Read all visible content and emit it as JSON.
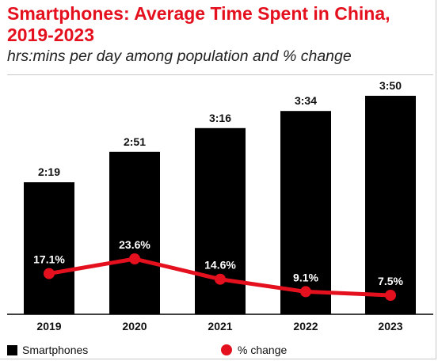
{
  "title": "Smartphones: Average Time Spent in China, 2019-2023",
  "subtitle": "hrs:mins per day among population and % change",
  "colors": {
    "bar": "#000000",
    "line": "#e4101e",
    "title": "#e4101e",
    "label_bg": "#000000",
    "label_text": "#ffffff"
  },
  "chart_data": {
    "type": "bar",
    "categories": [
      "2019",
      "2020",
      "2021",
      "2022",
      "2023"
    ],
    "series": [
      {
        "name": "Smartphones",
        "type": "bar",
        "values": [
          139,
          171,
          196,
          214,
          230
        ],
        "labels": [
          "2:19",
          "2:51",
          "3:16",
          "3:34",
          "3:50"
        ]
      },
      {
        "name": "% change",
        "type": "line",
        "values": [
          17.1,
          23.6,
          14.6,
          9.1,
          7.5
        ],
        "labels": [
          "17.1%",
          "23.6%",
          "14.6%",
          "9.1%",
          "7.5%"
        ]
      }
    ],
    "grid": false,
    "legend_position": "bottom-left"
  },
  "legend": [
    {
      "label": "Smartphones",
      "shape": "square"
    },
    {
      "label": "% change",
      "shape": "dot"
    }
  ]
}
